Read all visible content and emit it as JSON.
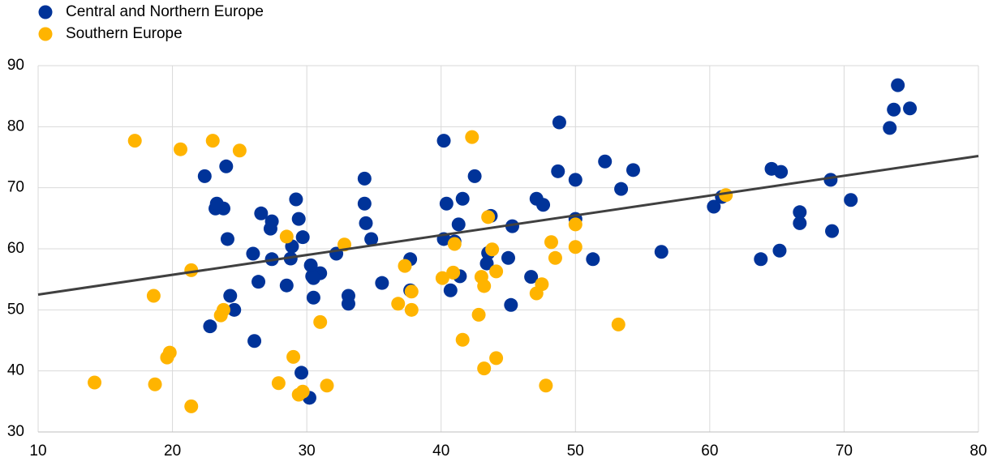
{
  "chart_data": {
    "type": "scatter",
    "xlim": [
      10,
      80
    ],
    "xticks": [
      10,
      20,
      30,
      40,
      50,
      60,
      70,
      80
    ],
    "ylim": [
      30,
      90
    ],
    "yticks": [
      30,
      40,
      50,
      60,
      70,
      80,
      90
    ],
    "grid": true,
    "legend": "top-left",
    "series": [
      {
        "name": "Central and Northern Europe",
        "color": "#003399",
        "x": [
          74.0,
          73.7,
          74.9,
          73.4,
          48.8,
          40.2,
          22.4,
          24.0,
          34.3,
          42.5,
          48.7,
          50.0,
          52.2,
          54.3,
          53.4,
          64.6,
          65.3,
          69.0,
          70.5,
          66.7,
          66.7,
          69.1,
          60.3,
          60.9,
          65.2,
          63.8,
          56.4,
          51.3,
          50.0,
          47.1,
          47.6,
          45.3,
          43.7,
          41.6,
          40.4,
          41.3,
          41.0,
          40.2,
          43.5,
          43.4,
          45.0,
          41.4,
          46.7,
          45.2,
          40.7,
          37.7,
          37.7,
          35.6,
          34.8,
          34.4,
          34.3,
          32.2,
          33.1,
          33.1,
          31.0,
          30.3,
          30.4,
          30.5,
          30.5,
          29.7,
          29.4,
          29.2,
          28.9,
          28.8,
          28.5,
          29.6,
          30.2,
          27.4,
          27.3,
          27.4,
          26.6,
          26.0,
          26.4,
          26.1,
          24.1,
          23.8,
          23.2,
          23.3,
          24.3,
          24.6,
          22.8
        ],
        "y": [
          86.8,
          82.8,
          83.0,
          79.8,
          80.7,
          77.7,
          71.9,
          73.5,
          71.5,
          71.9,
          72.7,
          71.3,
          74.3,
          72.9,
          69.8,
          73.1,
          72.6,
          71.3,
          68.0,
          66.0,
          64.2,
          62.9,
          66.9,
          68.5,
          59.7,
          58.3,
          59.5,
          58.3,
          64.9,
          68.2,
          67.2,
          63.7,
          65.4,
          68.2,
          67.4,
          64.0,
          61.2,
          61.6,
          59.3,
          57.6,
          58.5,
          55.5,
          55.4,
          50.8,
          53.2,
          53.2,
          58.3,
          54.4,
          61.6,
          64.2,
          67.4,
          59.2,
          52.3,
          51.0,
          56.0,
          57.3,
          55.5,
          55.2,
          52.0,
          61.9,
          64.9,
          68.1,
          60.4,
          58.4,
          54.0,
          39.7,
          35.6,
          64.5,
          63.3,
          58.3,
          65.8,
          59.2,
          54.6,
          44.9,
          61.6,
          66.6,
          66.6,
          67.4,
          52.3,
          50.0,
          47.3
        ]
      },
      {
        "name": "Southern Europe",
        "color": "#ffb400",
        "x": [
          17.2,
          20.6,
          23.0,
          25.0,
          42.3,
          21.4,
          18.6,
          23.8,
          23.6,
          19.8,
          19.6,
          18.7,
          21.4,
          14.2,
          28.5,
          32.8,
          29.0,
          27.9,
          29.7,
          29.4,
          31.5,
          31.0,
          37.3,
          36.8,
          37.8,
          37.8,
          40.1,
          40.9,
          41.0,
          42.8,
          41.6,
          43.2,
          44.1,
          43.5,
          43.8,
          44.1,
          43.0,
          43.2,
          48.2,
          48.5,
          47.5,
          47.1,
          47.8,
          50.0,
          50.0,
          53.2,
          61.2
        ],
        "y": [
          77.7,
          76.3,
          77.7,
          76.1,
          78.3,
          56.5,
          52.3,
          50.0,
          49.1,
          43.0,
          42.2,
          37.8,
          34.2,
          38.1,
          62.0,
          60.7,
          42.3,
          38.0,
          36.6,
          36.1,
          37.6,
          48.0,
          57.2,
          51.0,
          53.0,
          50.0,
          55.2,
          56.1,
          60.8,
          49.2,
          45.1,
          40.4,
          42.1,
          65.2,
          59.9,
          56.3,
          55.4,
          53.9,
          61.1,
          58.5,
          54.2,
          52.7,
          37.6,
          64.0,
          60.3,
          47.6,
          68.8
        ]
      }
    ],
    "trendline": {
      "color": "#404040",
      "x": [
        10,
        80
      ],
      "y": [
        52.5,
        75.2
      ]
    }
  }
}
